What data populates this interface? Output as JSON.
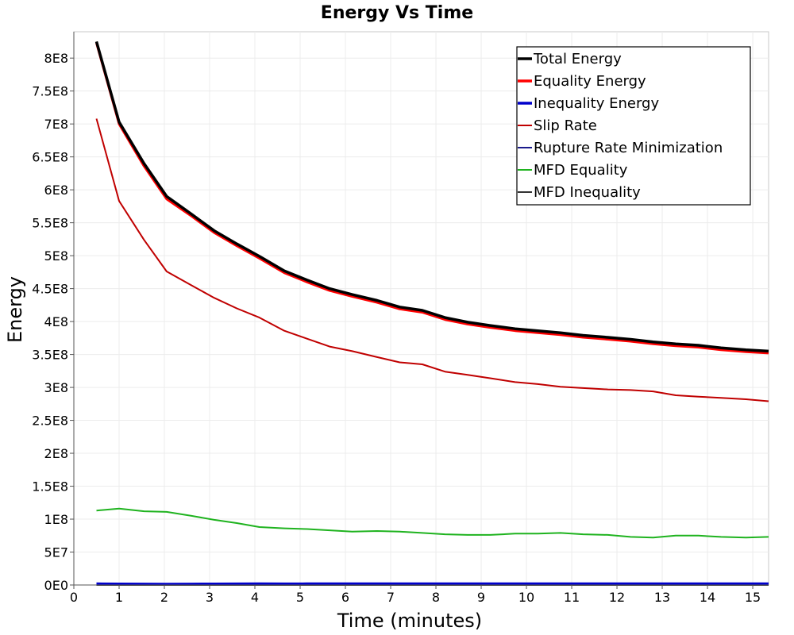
{
  "chart_data": {
    "type": "line",
    "title": "Energy Vs Time",
    "xlabel": "Time (minutes)",
    "ylabel": "Energy",
    "xlim": [
      0,
      15.35
    ],
    "ylim": [
      0,
      840000000
    ],
    "x_ticks": [
      0,
      1,
      2,
      3,
      4,
      5,
      6,
      7,
      8,
      9,
      10,
      11,
      12,
      13,
      14,
      15
    ],
    "x_tick_labels": [
      "0",
      "1",
      "2",
      "3",
      "4",
      "5",
      "6",
      "7",
      "8",
      "9",
      "10",
      "11",
      "12",
      "13",
      "14",
      "15"
    ],
    "y_ticks": [
      0,
      50000000,
      100000000,
      150000000,
      200000000,
      250000000,
      300000000,
      350000000,
      400000000,
      450000000,
      500000000,
      550000000,
      600000000,
      650000000,
      700000000,
      750000000,
      800000000
    ],
    "y_tick_labels": [
      "0E0",
      "5E7",
      "1E8",
      "1.5E8",
      "2E8",
      "2.5E8",
      "3E8",
      "3.5E8",
      "4E8",
      "4.5E8",
      "5E8",
      "5.5E8",
      "6E8",
      "6.5E8",
      "7E8",
      "7.5E8",
      "8E8"
    ],
    "grid": true,
    "legend_position": "top-right",
    "x": [
      0.5,
      1.0,
      1.55,
      2.05,
      2.6,
      3.1,
      3.6,
      4.1,
      4.65,
      5.15,
      5.65,
      6.15,
      6.7,
      7.2,
      7.7,
      8.2,
      8.7,
      9.2,
      9.75,
      10.25,
      10.75,
      11.25,
      11.8,
      12.3,
      12.8,
      13.3,
      13.8,
      14.3,
      14.85,
      15.35
    ],
    "series": [
      {
        "name": "Total Energy",
        "color": "#000000",
        "width": 3.5,
        "values": [
          825000000,
          703000000,
          640000000,
          590000000,
          563000000,
          538000000,
          518000000,
          499000000,
          477000000,
          463000000,
          450000000,
          441000000,
          432000000,
          422000000,
          417000000,
          406000000,
          399000000,
          394000000,
          389000000,
          386000000,
          383000000,
          379000000,
          376000000,
          373000000,
          369000000,
          366000000,
          364000000,
          360000000,
          357000000,
          355000000
        ]
      },
      {
        "name": "Equality Energy",
        "color": "#ff0000",
        "width": 3,
        "values": [
          823000000,
          700000000,
          636000000,
          586000000,
          560000000,
          535000000,
          515000000,
          496000000,
          474000000,
          460000000,
          447000000,
          438000000,
          429000000,
          419000000,
          414000000,
          403000000,
          396000000,
          391000000,
          386000000,
          383000000,
          380000000,
          376000000,
          373000000,
          370000000,
          366000000,
          363000000,
          361000000,
          357000000,
          354000000,
          352000000
        ]
      },
      {
        "name": "Inequality Energy",
        "color": "#0000cc",
        "width": 3,
        "values": [
          2000000,
          1800000,
          1700000,
          1600000,
          1700000,
          1800000,
          1900000,
          2000000,
          1900000,
          2000000,
          2000000,
          2000000,
          2000000,
          2000000,
          2000000,
          2000000,
          2000000,
          2000000,
          2000000,
          2000000,
          2000000,
          2000000,
          2000000,
          2000000,
          2000000,
          2000000,
          2000000,
          2000000,
          2000000,
          2000000
        ]
      },
      {
        "name": "Slip Rate",
        "color": "#c00000",
        "width": 2,
        "values": [
          708000000,
          583000000,
          524000000,
          476000000,
          455000000,
          436000000,
          420000000,
          406000000,
          386000000,
          374000000,
          362000000,
          355000000,
          346000000,
          338000000,
          335000000,
          324000000,
          319000000,
          314000000,
          308000000,
          305000000,
          301000000,
          299000000,
          297000000,
          296000000,
          294000000,
          288000000,
          286000000,
          284000000,
          282000000,
          279000000
        ]
      },
      {
        "name": "Rupture Rate Minimization",
        "color": "#1a1a8c",
        "width": 2,
        "values": [
          1500000,
          1300000,
          1200000,
          1100000,
          1200000,
          1300000,
          1400000,
          1500000,
          1400000,
          1500000,
          1500000,
          1500000,
          1500000,
          1500000,
          1500000,
          1500000,
          1500000,
          1500000,
          1500000,
          1500000,
          1500000,
          1500000,
          1500000,
          1500000,
          1500000,
          1500000,
          1500000,
          1500000,
          1500000,
          1500000
        ]
      },
      {
        "name": "MFD Equality",
        "color": "#1fb31f",
        "width": 2,
        "values": [
          113000000,
          116000000,
          112000000,
          111000000,
          105000000,
          99000000,
          94000000,
          88000000,
          86000000,
          85000000,
          83000000,
          81000000,
          82000000,
          81000000,
          79000000,
          77000000,
          76000000,
          76000000,
          78000000,
          78000000,
          79000000,
          77000000,
          76000000,
          73000000,
          72000000,
          75000000,
          75000000,
          73000000,
          72000000,
          73000000
        ]
      },
      {
        "name": "MFD Inequality",
        "color": "#333333",
        "width": 2,
        "values": [
          0,
          0,
          0,
          0,
          0,
          0,
          0,
          0,
          0,
          0,
          0,
          0,
          0,
          0,
          0,
          0,
          0,
          0,
          0,
          0,
          0,
          0,
          0,
          0,
          0,
          0,
          0,
          0,
          0,
          0
        ]
      }
    ]
  }
}
